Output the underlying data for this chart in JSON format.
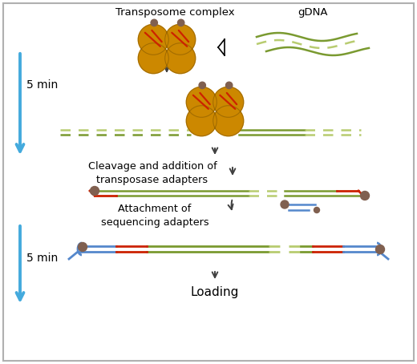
{
  "fig_width": 5.2,
  "fig_height": 4.54,
  "dpi": 100,
  "bg_color": "#ffffff",
  "border_color": "#b0b0b0",
  "title_transposome": "Transposome complex",
  "title_gdna": "gDNA",
  "label_5min_1": "5 min",
  "label_5min_2": "5 min",
  "label_cleavage": "Cleavage and addition of\ntransposase adapters",
  "label_attachment": "Attachment of\nsequencing adapters",
  "label_loading": "Loading",
  "gold_color": "#CC8800",
  "red_color": "#CC2200",
  "green_solid": "#7A9A30",
  "green_dashed": "#B8CC70",
  "blue_color": "#5588CC",
  "gray_bead": "#806050",
  "arrow_blue": "#44AADD",
  "dark_arrow": "#404040"
}
